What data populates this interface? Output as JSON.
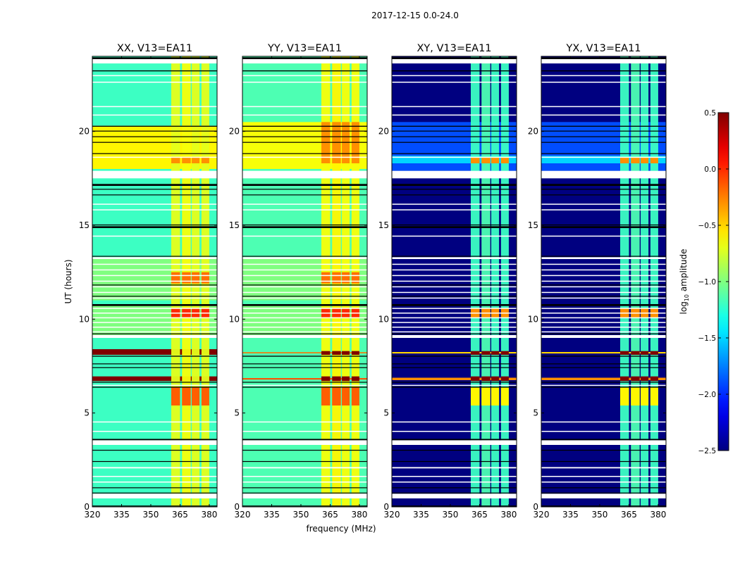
{
  "chart_data": {
    "type": "heatmap",
    "title": "2017-12-15 0.0-24.0",
    "xlabel": "frequency (MHz)",
    "ylabel": "UT (hours)",
    "xlim": [
      320,
      384
    ],
    "ylim": [
      0,
      24
    ],
    "xticks": [
      320,
      335,
      350,
      365,
      380
    ],
    "yticks": [
      0,
      5,
      10,
      15,
      20
    ],
    "colorbar": {
      "label_main": "log",
      "label_sub": "10",
      "label_rest": " amplitude",
      "colormap": "jet",
      "range": [
        -2.5,
        0.5
      ],
      "ticks": [
        "0.5",
        "0.0",
        "−0.5",
        "−1.0",
        "−1.5",
        "−2.0",
        "−2.5"
      ],
      "tick_values": [
        0.5,
        0.0,
        -0.5,
        -1.0,
        -1.5,
        -2.0,
        -2.5
      ]
    },
    "band_columns_mhz": [
      [
        360.5,
        365
      ],
      [
        366,
        370.5
      ],
      [
        371,
        375
      ],
      [
        376,
        380
      ]
    ],
    "flagged_blank_hours": [
      [
        23.62,
        23.85
      ],
      [
        22.95,
        23.0
      ],
      [
        22.6,
        22.65
      ],
      [
        21.3,
        21.35
      ],
      [
        20.85,
        20.9
      ],
      [
        18.6,
        18.65
      ],
      [
        17.5,
        17.9
      ],
      [
        16.1,
        16.15
      ],
      [
        15.8,
        15.85
      ],
      [
        14.4,
        14.45
      ],
      [
        13.2,
        13.3
      ],
      [
        12.9,
        12.95
      ],
      [
        12.6,
        12.65
      ],
      [
        12.3,
        12.35
      ],
      [
        12.0,
        12.05
      ],
      [
        11.7,
        11.75
      ],
      [
        11.4,
        11.45
      ],
      [
        11.1,
        11.15
      ],
      [
        10.55,
        10.6
      ],
      [
        10.3,
        10.35
      ],
      [
        10.05,
        10.1
      ],
      [
        9.8,
        9.85
      ],
      [
        9.55,
        9.6
      ],
      [
        9.3,
        9.35
      ],
      [
        9.0,
        9.15
      ],
      [
        6.45,
        6.5
      ],
      [
        4.5,
        4.55
      ],
      [
        4.0,
        4.05
      ],
      [
        3.3,
        3.55
      ],
      [
        2.05,
        2.12
      ],
      [
        1.6,
        1.65
      ],
      [
        1.3,
        1.35
      ],
      [
        0.45,
        0.7
      ]
    ],
    "gap_lines_hours": [
      [
        23.85,
        23.95
      ],
      [
        23.2,
        23.25
      ],
      [
        20.25,
        20.3
      ],
      [
        20.0,
        20.04
      ],
      [
        19.7,
        19.74
      ],
      [
        19.4,
        19.44
      ],
      [
        18.8,
        18.84
      ],
      [
        17.1,
        17.2
      ],
      [
        16.9,
        16.94
      ],
      [
        16.6,
        16.64
      ],
      [
        15.0,
        15.04
      ],
      [
        14.85,
        14.95
      ],
      [
        13.33,
        13.37
      ],
      [
        11.8,
        11.84
      ],
      [
        11.2,
        11.24
      ],
      [
        10.7,
        10.8
      ],
      [
        9.2,
        9.24
      ],
      [
        8.0,
        8.05
      ],
      [
        7.6,
        7.64
      ],
      [
        7.4,
        7.44
      ],
      [
        6.62,
        6.66
      ],
      [
        6.35,
        6.4
      ],
      [
        3.55,
        3.62
      ],
      [
        3.0,
        3.04
      ],
      [
        2.4,
        2.44
      ],
      [
        1.0,
        1.04
      ],
      [
        0.72,
        0.76
      ],
      [
        0.03,
        0.07
      ]
    ],
    "panels": [
      {
        "title": "XX, V13=EA11",
        "base_level": -1.2,
        "time_segments": [
          [
            18.0,
            20.3,
            -0.6
          ],
          [
            6.7,
            6.95,
            0.5
          ],
          [
            8.1,
            8.4,
            0.5
          ],
          [
            11.0,
            13.3,
            -1.0
          ],
          [
            9.0,
            10.8,
            -1.0
          ]
        ],
        "band_level": -0.7,
        "band_segments": [
          [
            5.4,
            6.4,
            -0.15
          ],
          [
            10.1,
            10.6,
            0.0
          ],
          [
            11.9,
            12.5,
            -0.2
          ],
          [
            18.3,
            18.6,
            -0.3
          ]
        ]
      },
      {
        "title": "YY, V13=EA11",
        "base_level": -1.15,
        "time_segments": [
          [
            18.0,
            20.5,
            -0.65
          ],
          [
            6.78,
            6.86,
            -0.1
          ],
          [
            8.18,
            8.24,
            -0.2
          ],
          [
            11.0,
            13.3,
            -1.0
          ],
          [
            9.0,
            10.8,
            -1.0
          ]
        ],
        "band_level": -0.65,
        "band_segments": [
          [
            6.7,
            6.95,
            0.5
          ],
          [
            8.1,
            8.3,
            0.5
          ],
          [
            5.4,
            6.4,
            -0.15
          ],
          [
            10.1,
            10.6,
            0.0
          ],
          [
            11.9,
            12.5,
            -0.2
          ],
          [
            18.3,
            20.5,
            -0.3
          ]
        ]
      },
      {
        "title": "XY, V13=EA11",
        "base_level": -2.5,
        "time_segments": [
          [
            17.9,
            20.5,
            -1.9
          ],
          [
            18.3,
            18.7,
            -1.5
          ],
          [
            6.75,
            6.88,
            -0.3
          ],
          [
            8.17,
            8.25,
            -0.5
          ]
        ],
        "band_level": -1.2,
        "band_segments": [
          [
            6.7,
            6.95,
            0.5
          ],
          [
            8.1,
            8.3,
            0.5
          ],
          [
            5.4,
            6.4,
            -0.6
          ],
          [
            10.1,
            10.6,
            -0.3
          ],
          [
            18.3,
            18.6,
            -0.3
          ]
        ]
      },
      {
        "title": "YX, V13=EA11",
        "base_level": -2.5,
        "time_segments": [
          [
            17.9,
            20.5,
            -1.9
          ],
          [
            18.3,
            18.7,
            -1.5
          ],
          [
            6.75,
            6.88,
            -0.3
          ],
          [
            8.17,
            8.25,
            -0.5
          ]
        ],
        "band_level": -1.2,
        "band_segments": [
          [
            6.7,
            6.95,
            0.5
          ],
          [
            8.1,
            8.3,
            0.5
          ],
          [
            5.4,
            6.4,
            -0.6
          ],
          [
            10.1,
            10.6,
            -0.3
          ],
          [
            18.3,
            18.6,
            -0.3
          ]
        ]
      }
    ]
  }
}
